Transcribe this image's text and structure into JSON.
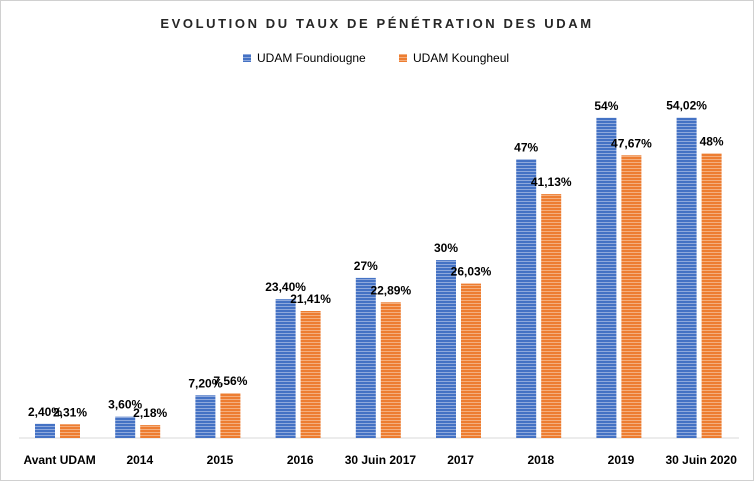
{
  "chart_data": {
    "type": "bar",
    "title": "EVOLUTION DU TAUX DE PÉNÉTRATION DES UDAM",
    "xlabel": "",
    "ylabel": "",
    "ylim": [
      0,
      60
    ],
    "grid": false,
    "legend_position": "top-center",
    "categories": [
      "Avant UDAM",
      "2014",
      "2015",
      "2016",
      "30 Juin 2017",
      "2017",
      "2018",
      "2019",
      "30 Juin 2020"
    ],
    "series": [
      {
        "name": "UDAM Foundiougne",
        "color": "#4472C4",
        "values": [
          2.4,
          3.6,
          7.2,
          23.4,
          27,
          30,
          47,
          54,
          54.02
        ],
        "labels": [
          "2,40%",
          "3,60%",
          "7,20%",
          "23,40%",
          "27%",
          "30%",
          "47%",
          "54%",
          "54,02%"
        ]
      },
      {
        "name": "UDAM Koungheul",
        "color": "#ED7D31",
        "values": [
          2.31,
          2.18,
          7.56,
          21.41,
          22.89,
          26.03,
          41.13,
          47.67,
          48
        ],
        "labels": [
          "2,31%",
          "2,18%",
          "7,56%",
          "21,41%",
          "22,89%",
          "26,03%",
          "41,13%",
          "47,67%",
          "48%"
        ]
      }
    ]
  }
}
